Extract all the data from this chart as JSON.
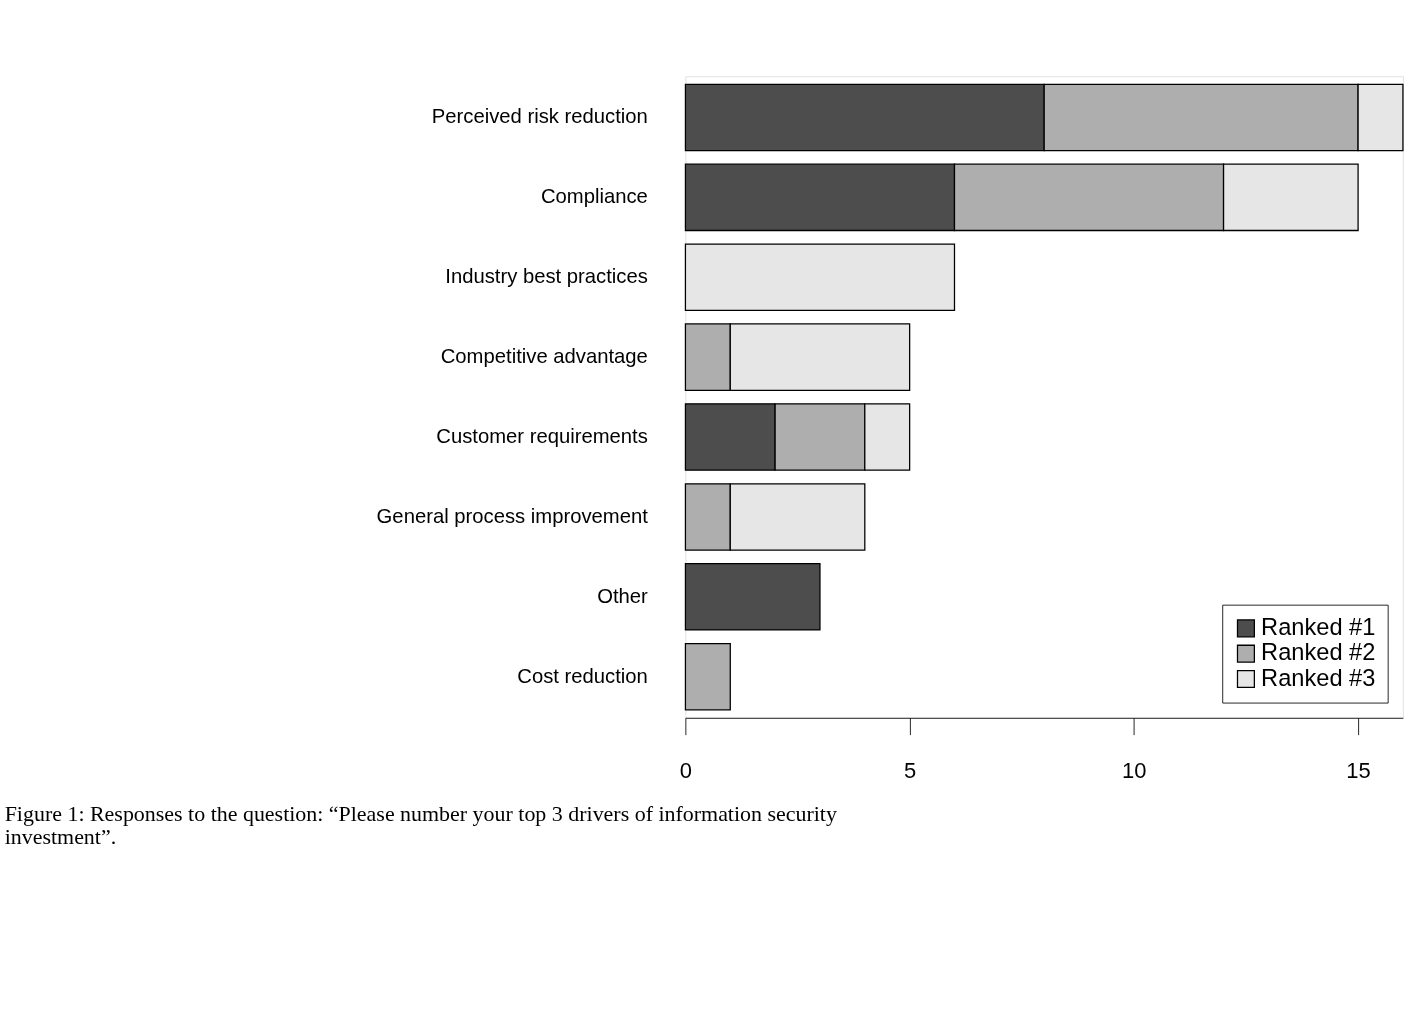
{
  "chart_data": {
    "type": "bar",
    "orientation": "horizontal",
    "stacked": true,
    "categories": [
      "Perceived risk reduction",
      "Compliance",
      "Industry best practices",
      "Competitive advantage",
      "Customer requirements",
      "General process improvement",
      "Other",
      "Cost reduction"
    ],
    "series": [
      {
        "name": "Ranked #1",
        "color": "#4d4d4d",
        "values": [
          8,
          6,
          0,
          0,
          2,
          0,
          3,
          0
        ]
      },
      {
        "name": "Ranked #2",
        "color": "#aeaeae",
        "values": [
          7,
          6,
          0,
          1,
          2,
          1,
          0,
          1
        ]
      },
      {
        "name": "Ranked #3",
        "color": "#e6e6e6",
        "values": [
          1,
          3,
          6,
          4,
          1,
          3,
          0,
          0
        ]
      }
    ],
    "xlim": [
      0,
      16
    ],
    "xticks": [
      0,
      5,
      10,
      15
    ],
    "grid": false,
    "legend": "bottom right",
    "annotations": [
      "Figure 1: Responses to the question: “Please number your top 3 drivers of information security investment”."
    ]
  }
}
